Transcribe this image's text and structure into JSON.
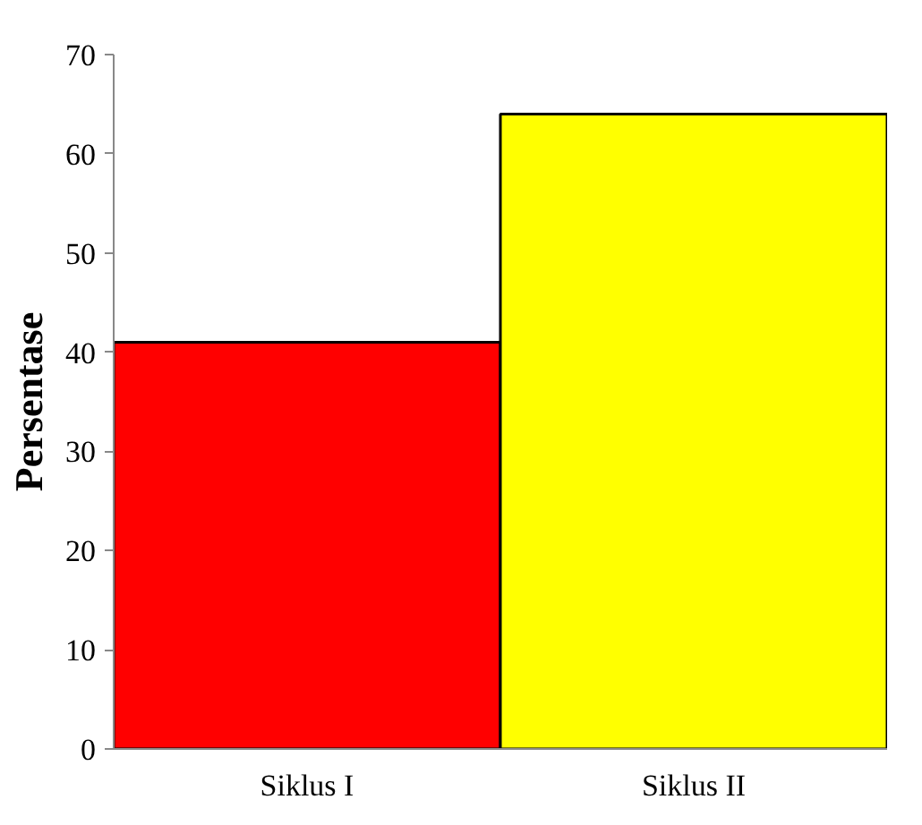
{
  "chart_data": {
    "type": "bar",
    "ylabel": "Persentase",
    "categories": [
      "Siklus I",
      "Siklus II"
    ],
    "values": [
      41,
      64
    ],
    "colors": [
      "#ff0000",
      "#ffff00"
    ],
    "ylim": [
      0,
      70
    ],
    "yticks": [
      0,
      10,
      20,
      30,
      40,
      50,
      60,
      70
    ],
    "grid": false
  }
}
